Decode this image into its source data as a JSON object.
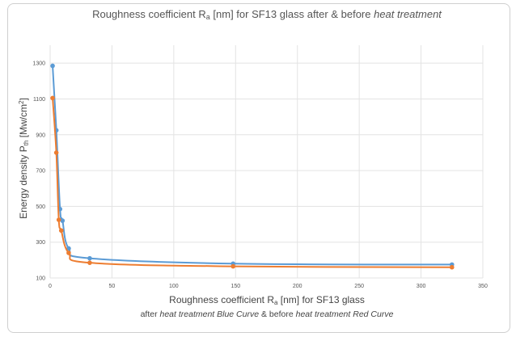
{
  "chart_data": {
    "type": "line",
    "title": {
      "pre": "Roughness coefficient R",
      "sub": "a",
      "mid": " [nm] for SF13 glass after & before ",
      "em": "heat treatment"
    },
    "xlabel": {
      "pre": "Roughness coefficient R",
      "sub": "a",
      "post": " [nm] for SF13 glass"
    },
    "ylabel": {
      "pre": "Energy density P",
      "sub": "th",
      "mid": " [Mw/cm",
      "sup": "2",
      "post": "]"
    },
    "note": {
      "p1": "after ",
      "e1": "heat treatment Blue Curve",
      "p2": "  & before ",
      "e2": "heat treatment Red Curve"
    },
    "xlim": [
      0,
      350
    ],
    "ylim": [
      100,
      1400
    ],
    "x_ticks": [
      0,
      50,
      100,
      150,
      200,
      250,
      300,
      350
    ],
    "y_ticks": [
      100,
      300,
      500,
      700,
      900,
      1100,
      1300
    ],
    "grid": true,
    "series": [
      {
        "color": "#5b9bd5",
        "x": [
          2,
          5,
          8,
          10,
          15,
          32,
          148,
          325
        ],
        "y": [
          1285,
          925,
          485,
          420,
          265,
          210,
          180,
          175
        ]
      },
      {
        "color": "#ed7d31",
        "x": [
          2,
          5,
          7,
          9,
          15,
          32,
          148,
          325
        ],
        "y": [
          1105,
          800,
          425,
          365,
          240,
          185,
          165,
          160
        ]
      }
    ]
  }
}
